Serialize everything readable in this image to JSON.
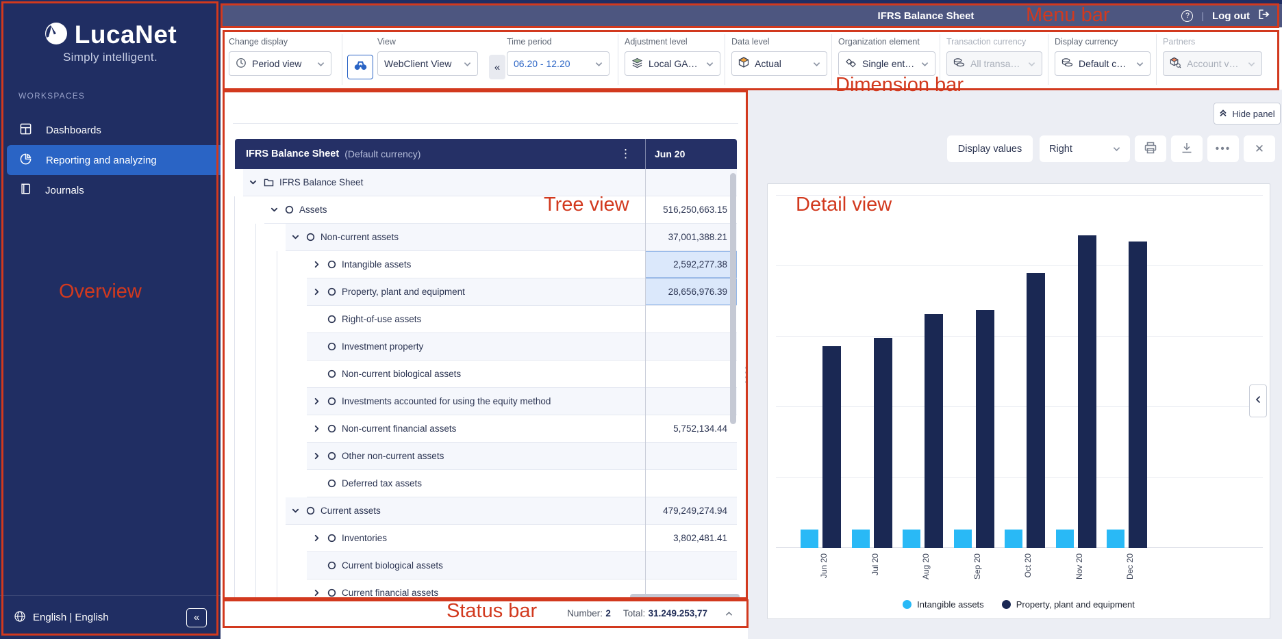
{
  "colors": {
    "sidebar_navy": "#202e63",
    "selected_blue": "#2a64c5",
    "menu_bar": "#4d5680",
    "table_header": "#253066",
    "annotation_red": "#d2391e"
  },
  "annotations": {
    "overview": "Overview",
    "menu_bar": "Menu bar",
    "dimension_bar": "Dimension bar",
    "tree_view": "Tree view",
    "detail_view": "Detail view",
    "status_bar": "Status bar"
  },
  "sidebar": {
    "logo_title": "LucaNet",
    "logo_tagline": "Simply intelligent.",
    "section_label": "WORKSPACES",
    "items": [
      {
        "label": "Dashboards",
        "icon": "dashboard-icon",
        "selected": false
      },
      {
        "label": "Reporting and analyzing",
        "icon": "pie-chart-icon",
        "selected": true
      },
      {
        "label": "Journals",
        "icon": "journal-icon",
        "selected": false
      }
    ],
    "language_label": "English | English",
    "collapse_glyph": "«"
  },
  "menu_bar": {
    "title": "IFRS Balance Sheet",
    "help_glyph": "?",
    "logout_label": "Log out"
  },
  "dimension_bar": {
    "change_display": {
      "label": "Change display",
      "value": "Period view"
    },
    "view": {
      "label": "View",
      "value": "WebClient View"
    },
    "collapse_glyph": "«",
    "time_period": {
      "label": "Time period",
      "value": "06.20 - 12.20"
    },
    "adjustment_level": {
      "label": "Adjustment level",
      "value": "Local GA…"
    },
    "data_level": {
      "label": "Data level",
      "value": "Actual"
    },
    "organization_element": {
      "label": "Organization element",
      "value": "Single ent…"
    },
    "transaction_currency": {
      "label": "Transaction currency",
      "value": "All transa…"
    },
    "display_currency": {
      "label": "Display currency",
      "value": "Default c…"
    },
    "partners": {
      "label": "Partners",
      "value": "Account v…"
    }
  },
  "tree": {
    "title": "IFRS Balance Sheet",
    "subtitle": "(Default currency)",
    "kebab_glyph": "⋮",
    "column_header": "Jun 20",
    "rows": [
      {
        "label": "IFRS Balance Sheet",
        "level": 0,
        "expand": "down",
        "icon": "folder",
        "value": "",
        "selected": false
      },
      {
        "label": "Assets",
        "level": 1,
        "expand": "down",
        "icon": "circle",
        "value": "516,250,663.15",
        "selected": false
      },
      {
        "label": "Non-current assets",
        "level": 2,
        "expand": "down",
        "icon": "circle",
        "value": "37,001,388.21",
        "selected": false
      },
      {
        "label": "Intangible assets",
        "level": 3,
        "expand": "right",
        "icon": "circle",
        "value": "2,592,277.38",
        "selected": true
      },
      {
        "label": "Property, plant and equipment",
        "level": 3,
        "expand": "right",
        "icon": "circle",
        "value": "28,656,976.39",
        "selected": true
      },
      {
        "label": "Right-of-use assets",
        "level": 3,
        "expand": null,
        "icon": "circle",
        "value": "",
        "selected": false
      },
      {
        "label": "Investment property",
        "level": 3,
        "expand": null,
        "icon": "circle",
        "value": "",
        "selected": false
      },
      {
        "label": "Non-current biological assets",
        "level": 3,
        "expand": null,
        "icon": "circle",
        "value": "",
        "selected": false
      },
      {
        "label": "Investments accounted for using the equity method",
        "level": 3,
        "expand": "right",
        "icon": "circle",
        "value": "",
        "selected": false
      },
      {
        "label": "Non-current financial assets",
        "level": 3,
        "expand": "right",
        "icon": "circle",
        "value": "5,752,134.44",
        "selected": false
      },
      {
        "label": "Other non-current assets",
        "level": 3,
        "expand": "right",
        "icon": "circle",
        "value": "",
        "selected": false
      },
      {
        "label": "Deferred tax assets",
        "level": 3,
        "expand": null,
        "icon": "circle",
        "value": "",
        "selected": false
      },
      {
        "label": "Current assets",
        "level": 2,
        "expand": "down",
        "icon": "circle",
        "value": "479,249,274.94",
        "selected": false
      },
      {
        "label": "Inventories",
        "level": 3,
        "expand": "right",
        "icon": "circle",
        "value": "3,802,481.41",
        "selected": false
      },
      {
        "label": "Current biological assets",
        "level": 3,
        "expand": null,
        "icon": "circle",
        "value": "",
        "selected": false
      },
      {
        "label": "Current financial assets",
        "level": 3,
        "expand": "right",
        "icon": "circle",
        "value": "",
        "selected": false
      }
    ]
  },
  "status_bar": {
    "number_label": "Number:",
    "number_value": "2",
    "total_label": "Total:",
    "total_value": "31.249.253,77"
  },
  "detail_panel": {
    "hide_panel_label": "Hide panel",
    "display_values_label": "Display values",
    "legend_position_value": "Right"
  },
  "chart_data": {
    "type": "bar",
    "title": "",
    "xlabel": "",
    "ylabel": "",
    "categories": [
      "Jun 20",
      "Jul 20",
      "Aug 20",
      "Sep 20",
      "Oct 20",
      "Nov 20",
      "Dec 20"
    ],
    "series": [
      {
        "name": "Intangible assets",
        "color": "#29b9f6",
        "values": [
          2592277,
          2600000,
          2600000,
          2600000,
          2600000,
          2600000,
          2600000
        ]
      },
      {
        "name": "Property, plant and equipment",
        "color": "#1a2853",
        "values": [
          28656976,
          29800000,
          33200000,
          33800000,
          39000000,
          44400000,
          43500000
        ]
      }
    ],
    "ylim": [
      0,
      50000000
    ],
    "gridlines": true,
    "y_axis_labels_visible": false,
    "legend_position": "bottom"
  }
}
